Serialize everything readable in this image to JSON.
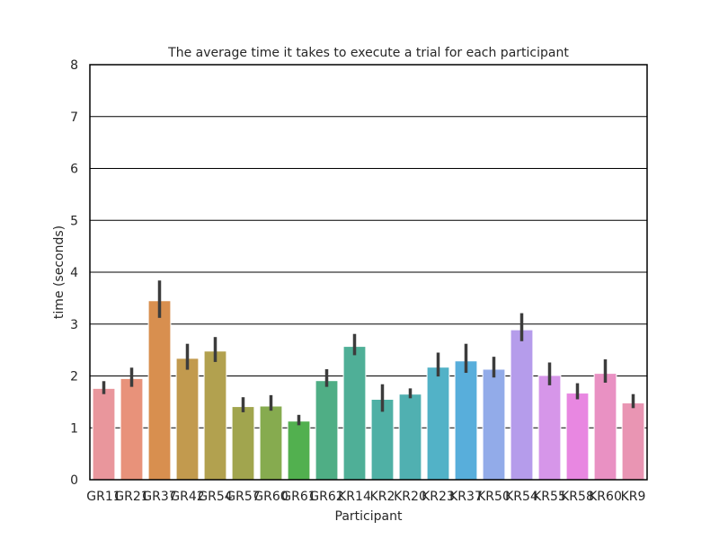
{
  "chart_data": {
    "type": "bar",
    "title": "The average time it takes to execute a trial for each participant",
    "xlabel": "Participant",
    "ylabel": "time (seconds)",
    "ylim": [
      0,
      8
    ],
    "yticks": [
      "0",
      "1",
      "2",
      "3",
      "4",
      "5",
      "6",
      "7",
      "8"
    ],
    "grid": true,
    "categories": [
      "GR11",
      "GR21",
      "GR37",
      "GR42",
      "GR54",
      "GR57",
      "GR60",
      "GR61",
      "GR62",
      "KR14",
      "KR2",
      "KR20",
      "KR23",
      "KR37",
      "KR50",
      "KR54",
      "KR55",
      "KR58",
      "KR60",
      "KR9"
    ],
    "values": [
      1.76,
      1.95,
      3.45,
      2.34,
      2.48,
      1.41,
      1.42,
      1.13,
      1.91,
      2.57,
      1.55,
      1.65,
      2.17,
      2.29,
      2.13,
      2.89,
      2.01,
      1.67,
      2.05,
      1.48
    ],
    "ci_low": [
      1.65,
      1.79,
      3.12,
      2.12,
      2.27,
      1.3,
      1.33,
      1.05,
      1.79,
      2.4,
      1.31,
      1.57,
      1.99,
      2.06,
      1.97,
      2.67,
      1.82,
      1.55,
      1.87,
      1.38
    ],
    "ci_high": [
      1.9,
      2.16,
      3.84,
      2.62,
      2.75,
      1.59,
      1.63,
      1.25,
      2.13,
      2.81,
      1.84,
      1.76,
      2.45,
      2.62,
      2.37,
      3.21,
      2.26,
      1.86,
      2.32,
      1.65
    ],
    "colors": [
      "#e9969c",
      "#e8927a",
      "#d88f4f",
      "#c29a4e",
      "#b2a14f",
      "#a1a54e",
      "#86ab4f",
      "#52b04f",
      "#4fae85",
      "#4faf97",
      "#4fb0a5",
      "#50b0b1",
      "#52b2c7",
      "#58aedb",
      "#92abe9",
      "#b59ceb",
      "#d696e9",
      "#e887e1",
      "#e991c3",
      "#e995b3"
    ],
    "bar_edge_color": "#ffffff",
    "error_bar_color": "#3c3c3c",
    "grid_color": "#000000"
  }
}
